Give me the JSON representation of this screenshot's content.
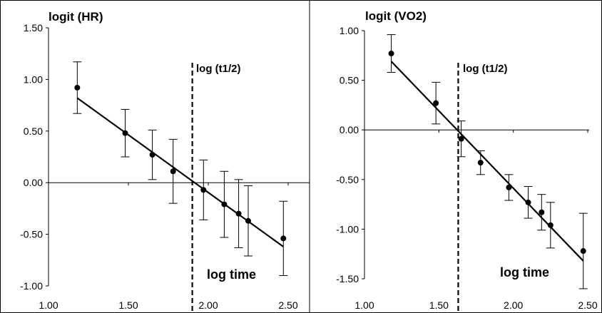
{
  "chart_data": [
    {
      "type": "scatter",
      "title": "logit (HR)",
      "xlabel": "log time",
      "ylabel": "",
      "xlim": [
        1.0,
        2.5
      ],
      "ylim": [
        -1.0,
        1.5
      ],
      "x_ticks": [
        "1.00",
        "1.50",
        "2.00",
        "2.50"
      ],
      "y_ticks": [
        "1.50",
        "1.00",
        "0.50",
        "0.00",
        "-0.50",
        "-1.00"
      ],
      "series": [
        {
          "x": [
            1.18,
            1.48,
            1.65,
            1.78,
            1.97,
            2.1,
            2.19,
            2.25,
            2.47
          ],
          "y": [
            0.92,
            0.48,
            0.27,
            0.11,
            -0.07,
            -0.21,
            -0.3,
            -0.37,
            -0.54
          ],
          "err": [
            0.25,
            0.23,
            0.24,
            0.31,
            0.29,
            0.32,
            0.33,
            0.34,
            0.36
          ]
        }
      ],
      "regression_line": {
        "x": [
          1.18,
          2.47
        ],
        "y": [
          0.82,
          -0.62
        ]
      },
      "annotation": {
        "label": "log (t1/2)",
        "x": 1.9
      },
      "grid": false,
      "legend": "none"
    },
    {
      "type": "scatter",
      "title": "logit (VO2)",
      "xlabel": "log time",
      "ylabel": "",
      "xlim": [
        1.0,
        2.5
      ],
      "ylim": [
        -1.5,
        1.0
      ],
      "x_ticks": [
        "1.00",
        "1.50",
        "2.00",
        "2.50"
      ],
      "y_ticks": [
        "1.00",
        "0.50",
        "0.00",
        "-0.50",
        "-1.00",
        "-1.50"
      ],
      "series": [
        {
          "x": [
            1.18,
            1.48,
            1.65,
            1.78,
            1.97,
            2.1,
            2.19,
            2.25,
            2.47
          ],
          "y": [
            0.77,
            0.27,
            -0.09,
            -0.33,
            -0.58,
            -0.73,
            -0.83,
            -0.96,
            -1.22
          ],
          "err": [
            0.19,
            0.21,
            0.18,
            0.12,
            0.13,
            0.16,
            0.18,
            0.23,
            0.38
          ]
        }
      ],
      "regression_line": {
        "x": [
          1.18,
          2.47
        ],
        "y": [
          0.69,
          -1.32
        ]
      },
      "annotation": {
        "label": "log (t1/2)",
        "x": 1.63
      },
      "grid": false,
      "legend": "none"
    }
  ]
}
